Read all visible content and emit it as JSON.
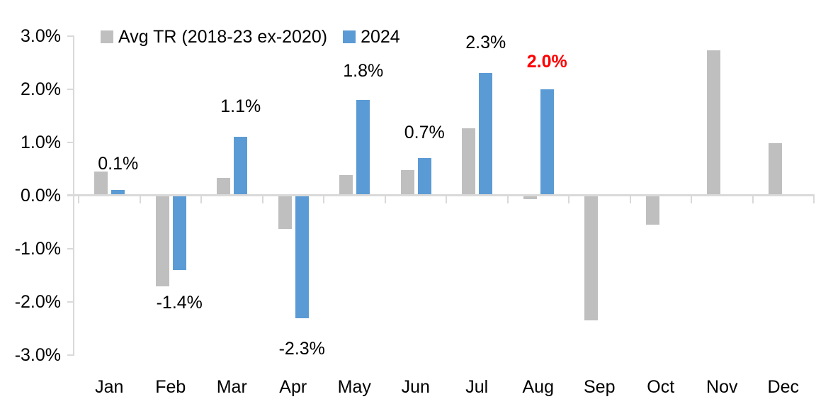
{
  "chart_data": {
    "type": "bar",
    "title": "",
    "categories": [
      "Jan",
      "Feb",
      "Mar",
      "Apr",
      "May",
      "Jun",
      "Jul",
      "Aug",
      "Sep",
      "Oct",
      "Nov",
      "Dec"
    ],
    "series": [
      {
        "name": "Avg TR (2018-23 ex-2020)",
        "color": "#BFBFBF",
        "values": [
          0.45,
          -1.7,
          0.33,
          -0.63,
          0.38,
          0.48,
          1.26,
          -0.06,
          -2.35,
          -0.54,
          2.73,
          0.98
        ]
      },
      {
        "name": "2024",
        "color": "#5B9BD5",
        "values": [
          0.1,
          -1.4,
          1.1,
          -2.3,
          1.8,
          0.7,
          2.3,
          2.0,
          null,
          null,
          null,
          null
        ]
      }
    ],
    "data_labels": [
      {
        "category": "Jan",
        "text": "0.1%",
        "color": "#000000",
        "bold": false
      },
      {
        "category": "Feb",
        "text": "-1.4%",
        "color": "#000000",
        "bold": false
      },
      {
        "category": "Mar",
        "text": "1.1%",
        "color": "#000000",
        "bold": false
      },
      {
        "category": "Apr",
        "text": "-2.3%",
        "color": "#000000",
        "bold": false
      },
      {
        "category": "May",
        "text": "1.8%",
        "color": "#000000",
        "bold": false
      },
      {
        "category": "Jun",
        "text": "0.7%",
        "color": "#000000",
        "bold": false
      },
      {
        "category": "Jul",
        "text": "2.3%",
        "color": "#000000",
        "bold": false
      },
      {
        "category": "Aug",
        "text": "2.0%",
        "color": "#FF0000",
        "bold": true
      }
    ],
    "y_axis": {
      "min": -3,
      "max": 3,
      "step": 1,
      "tick_labels": [
        "3.0%",
        "2.0%",
        "1.0%",
        "0.0%",
        "-1.0%",
        "-2.0%",
        "-3.0%"
      ]
    },
    "x_axis": {
      "tick_labels": [
        "Jan",
        "Feb",
        "Mar",
        "Apr",
        "May",
        "Jun",
        "Jul",
        "Aug",
        "Sep",
        "Oct",
        "Nov",
        "Dec"
      ]
    },
    "legend_position": "top",
    "grid": false,
    "colors": {
      "axis_line": "#D9D9D9",
      "background": "#FFFFFF",
      "highlight_label": "#FF0000"
    }
  }
}
